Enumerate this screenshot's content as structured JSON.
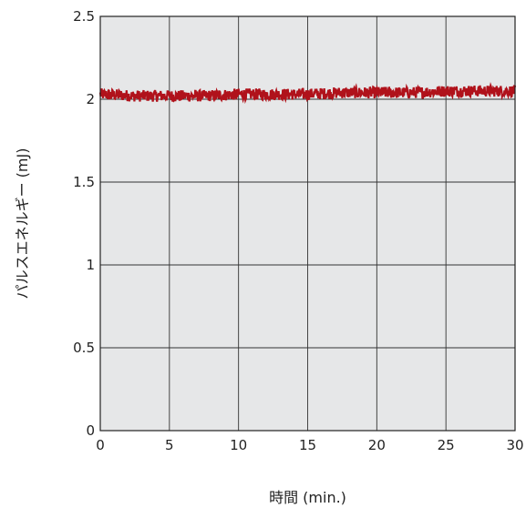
{
  "chart_data": {
    "type": "line",
    "title": "",
    "xlabel": "時間 (min.)",
    "ylabel": "パルスエネルギー (mJ)",
    "xlim": [
      0,
      30
    ],
    "ylim": [
      0,
      2.5
    ],
    "x_ticks": [
      "0",
      "5",
      "10",
      "15",
      "20",
      "25",
      "30"
    ],
    "y_ticks": [
      "0",
      "0.5",
      "1",
      "1.5",
      "2",
      "2.5"
    ],
    "grid": true,
    "legend": "none",
    "colors": {
      "plot_background": "#e6e7e8",
      "grid": "#333333",
      "series": "#b0121b"
    },
    "series": [
      {
        "x": [
          0,
          2.5,
          5,
          7.5,
          10,
          12.5,
          15,
          17.5,
          20,
          22.5,
          25,
          27.5,
          30
        ],
        "y": [
          2.03,
          2.02,
          2.02,
          2.02,
          2.03,
          2.03,
          2.03,
          2.04,
          2.04,
          2.04,
          2.05,
          2.05,
          2.05
        ],
        "noise_band": 0.035
      }
    ]
  }
}
